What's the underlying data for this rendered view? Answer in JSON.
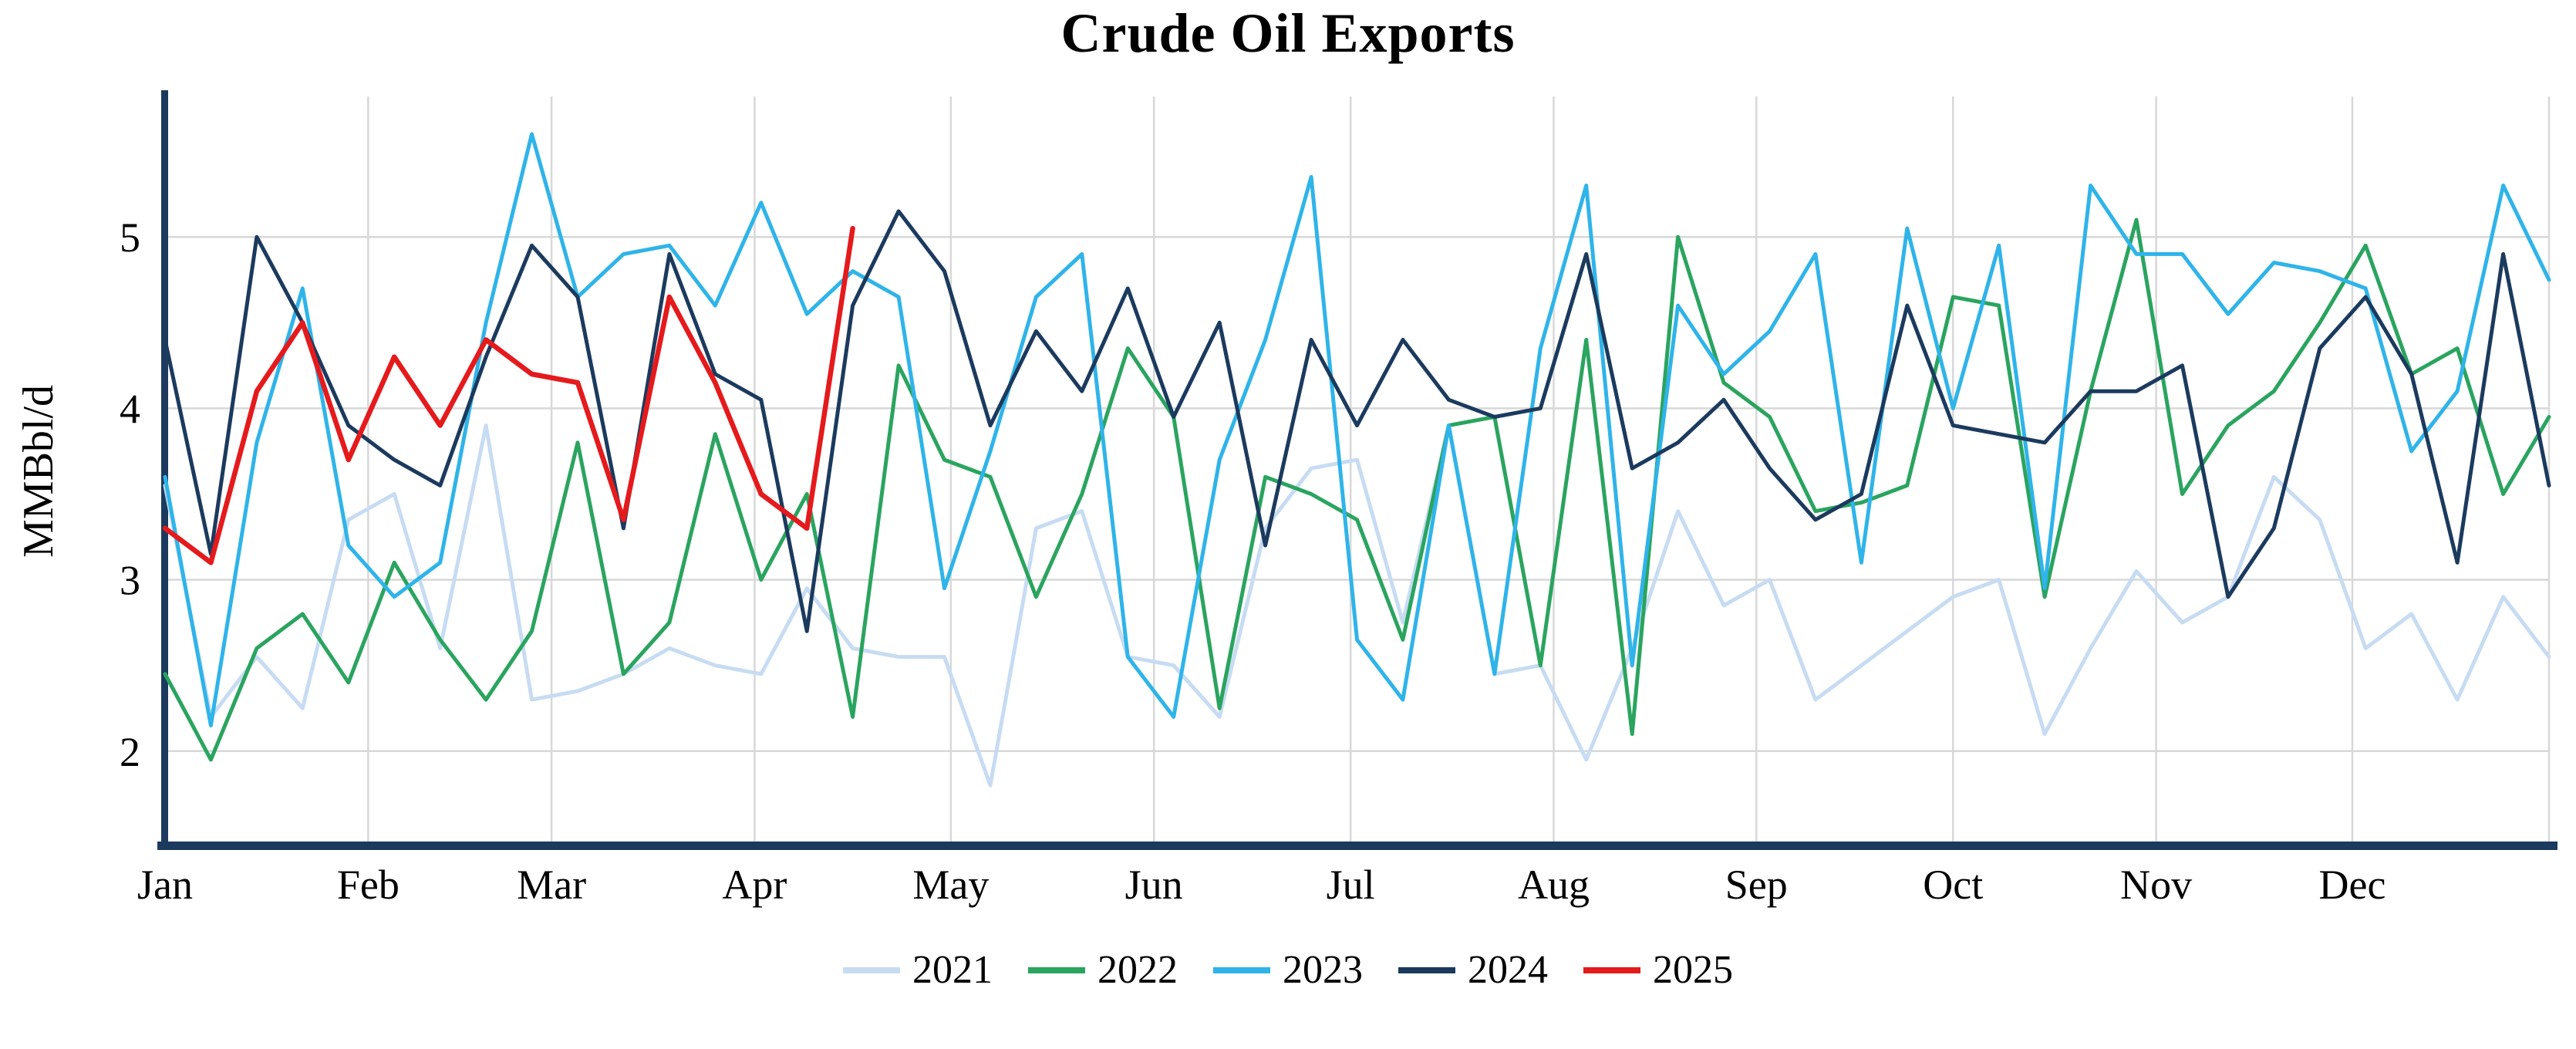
{
  "chart_data": {
    "type": "line",
    "title": "Crude Oil Exports",
    "xlabel": "",
    "ylabel": "MMBbl/d",
    "x_unit": "week of year",
    "grid": true,
    "legend_position": "bottom",
    "axis_color": "#1b3a5e",
    "grid_color": "#d8d8d8",
    "text_color": "#000000",
    "ylim": [
      1.45,
      5.82
    ],
    "xlim_weeks": [
      1,
      53
    ],
    "y_ticks": [
      2,
      3,
      4,
      5
    ],
    "x_tick_labels": [
      "Jan",
      "Feb",
      "Mar",
      "Apr",
      "May",
      "Jun",
      "Jul",
      "Aug",
      "Sep",
      "Oct",
      "Nov",
      "Dec"
    ],
    "x_tick_weeks": [
      1,
      5.43,
      9.43,
      13.86,
      18.14,
      22.57,
      26.86,
      31.29,
      35.71,
      40.0,
      44.43,
      48.71
    ],
    "series": [
      {
        "name": "2021",
        "color": "#c7dcf2",
        "values": [
          3.55,
          2.2,
          2.55,
          2.25,
          3.35,
          3.5,
          2.6,
          3.9,
          2.3,
          2.35,
          2.45,
          2.6,
          2.5,
          2.45,
          2.95,
          2.6,
          2.55,
          2.55,
          1.8,
          3.3,
          3.4,
          2.55,
          2.5,
          2.2,
          3.3,
          3.65,
          3.7,
          2.75,
          3.9,
          2.45,
          2.5,
          1.95,
          2.6,
          3.4,
          2.85,
          3.0,
          2.3,
          2.5,
          2.7,
          2.9,
          3.0,
          2.1,
          2.6,
          3.05,
          2.75,
          2.9,
          3.6,
          3.35,
          2.6,
          2.8,
          2.3,
          2.9,
          2.55
        ]
      },
      {
        "name": "2022",
        "color": "#2aa45f",
        "values": [
          2.45,
          1.95,
          2.6,
          2.8,
          2.4,
          3.1,
          2.65,
          2.3,
          2.7,
          3.8,
          2.45,
          2.75,
          3.85,
          3.0,
          3.5,
          2.2,
          4.25,
          3.7,
          3.6,
          2.9,
          3.5,
          4.35,
          3.95,
          2.25,
          3.6,
          3.5,
          3.35,
          2.65,
          3.9,
          3.95,
          2.5,
          4.4,
          2.1,
          5.0,
          4.15,
          3.95,
          3.4,
          3.45,
          3.55,
          4.65,
          4.6,
          2.9,
          4.1,
          5.1,
          3.5,
          3.9,
          4.1,
          4.5,
          4.95,
          4.2,
          4.35,
          3.5,
          3.95
        ]
      },
      {
        "name": "2023",
        "color": "#2fb4e9",
        "values": [
          3.6,
          2.15,
          3.8,
          4.7,
          3.2,
          2.9,
          3.1,
          4.5,
          5.6,
          4.65,
          4.9,
          4.95,
          4.6,
          5.2,
          4.55,
          4.8,
          4.65,
          2.95,
          3.75,
          4.65,
          4.9,
          2.55,
          2.2,
          3.7,
          4.4,
          5.35,
          2.65,
          2.3,
          3.9,
          2.45,
          4.35,
          5.3,
          2.5,
          4.6,
          4.2,
          4.45,
          4.9,
          3.1,
          5.05,
          4.0,
          4.95,
          2.95,
          5.3,
          4.9,
          4.9,
          4.55,
          4.85,
          4.8,
          4.7,
          3.75,
          4.1,
          5.3,
          4.75
        ]
      },
      {
        "name": "2024",
        "color": "#1b3a5e",
        "values": [
          4.4,
          3.15,
          5.0,
          4.5,
          3.9,
          3.7,
          3.55,
          4.3,
          4.95,
          4.65,
          3.3,
          4.9,
          4.2,
          4.05,
          2.7,
          4.6,
          5.15,
          4.8,
          3.9,
          4.45,
          4.1,
          4.7,
          3.95,
          4.5,
          3.2,
          4.4,
          3.9,
          4.4,
          4.05,
          3.95,
          4.0,
          4.9,
          3.65,
          3.8,
          4.05,
          3.65,
          3.35,
          3.5,
          4.6,
          3.9,
          3.85,
          3.8,
          4.1,
          4.1,
          4.25,
          2.9,
          3.3,
          4.35,
          4.65,
          4.2,
          3.1,
          4.9,
          3.55
        ]
      },
      {
        "name": "2025",
        "color": "#e41a1c",
        "values": [
          3.3,
          3.1,
          4.1,
          4.5,
          3.7,
          4.3,
          3.9,
          4.4,
          4.2,
          4.15,
          3.35,
          4.65,
          4.15,
          3.5,
          3.3,
          5.05
        ]
      }
    ]
  }
}
